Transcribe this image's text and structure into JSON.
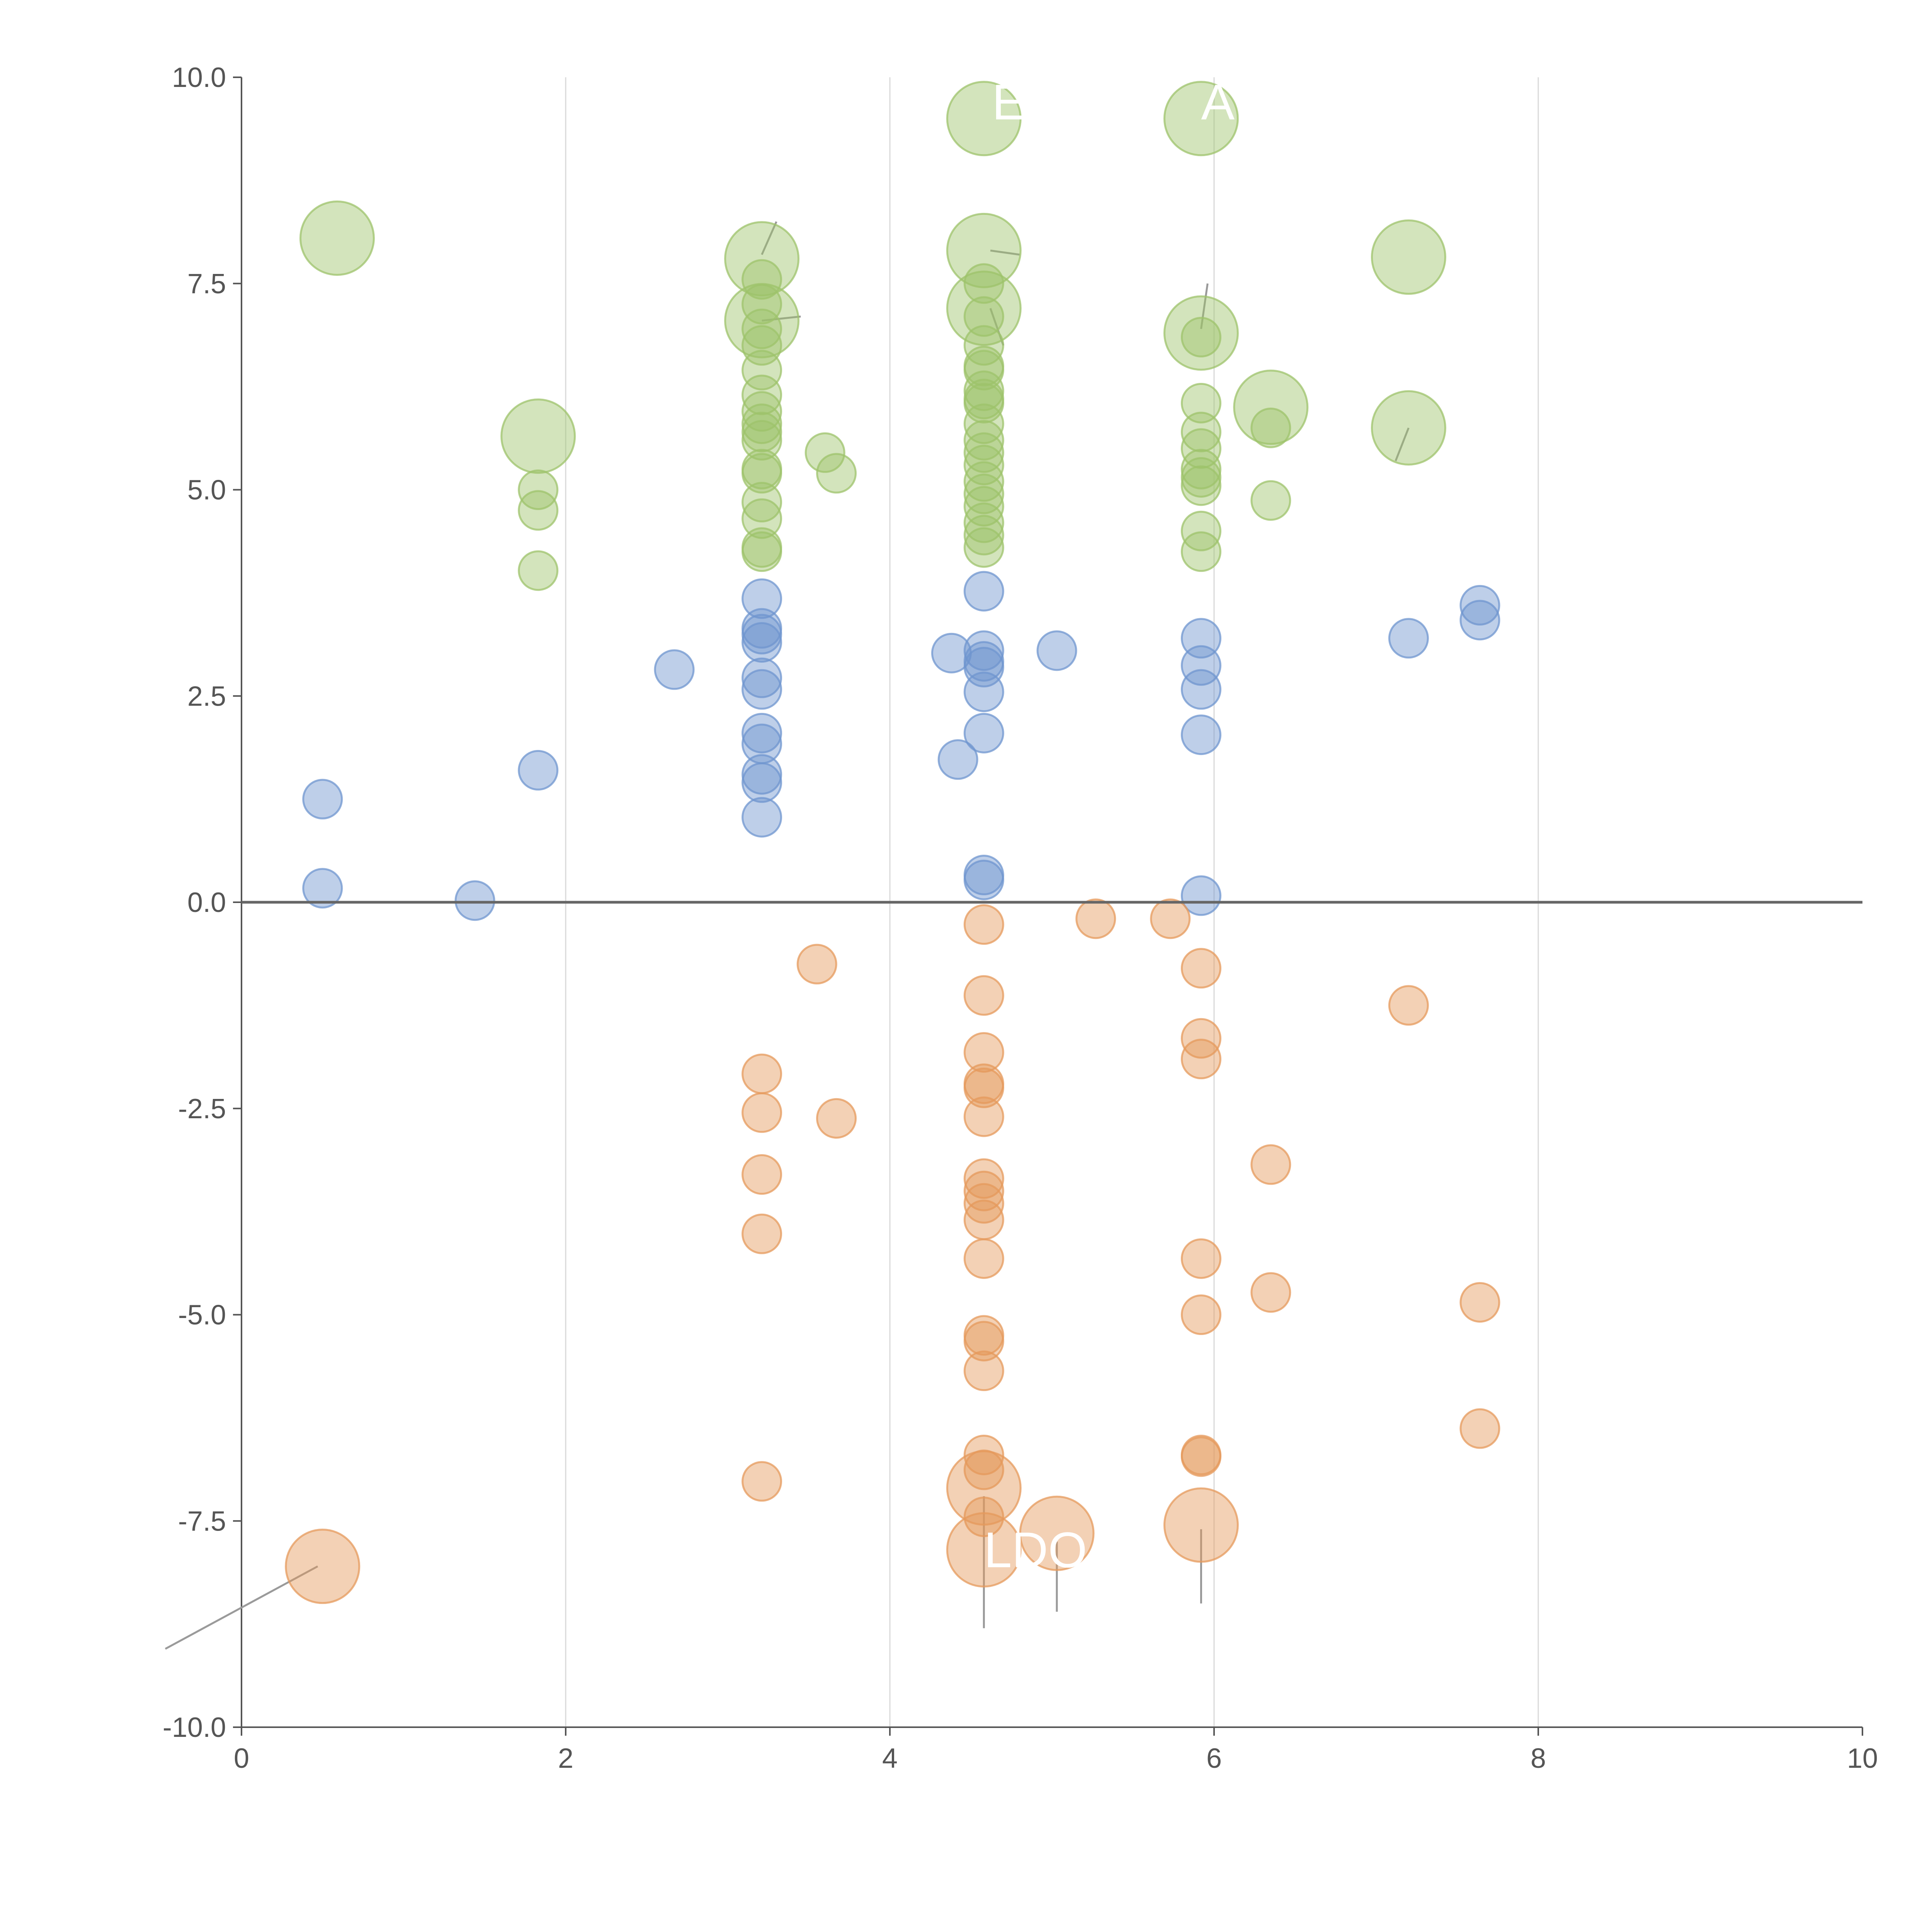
{
  "chart_data": {
    "type": "scatter",
    "title": "",
    "xlabel": "",
    "ylabel": "",
    "xlim": [
      0,
      10
    ],
    "ylim": [
      -10,
      10
    ],
    "x_ticks": [
      "0",
      "2",
      "4",
      "6",
      "8",
      "10"
    ],
    "y_ticks": [
      "-10.0",
      "-7.5",
      "-5.0",
      "-2.5",
      "0.0",
      "2.5",
      "5.0",
      "7.5",
      "10.0"
    ],
    "x_tick_values": [
      0,
      2,
      4,
      6,
      8,
      10
    ],
    "y_tick_values": [
      -10,
      -7.5,
      -5,
      -2.5,
      0,
      2.5,
      5,
      7.5,
      10
    ],
    "grid": "vertical",
    "reference_line_y": 0,
    "colors": {
      "green": "#9dc36b",
      "blue": "#6f95cf",
      "orange": "#e59a5c",
      "axis": "#555555",
      "zero_line": "#666666",
      "grid": "#d9d9d9",
      "leader": "#9a9a9a",
      "label": "#ffffff"
    },
    "series": [
      {
        "name": "positive-high",
        "color": "#9dc36b",
        "points": [
          {
            "x": 0.59,
            "y": 8.05,
            "big": true
          },
          {
            "x": 1.83,
            "y": 5.65,
            "big": true
          },
          {
            "x": 1.83,
            "y": 5.0
          },
          {
            "x": 1.83,
            "y": 4.75
          },
          {
            "x": 1.83,
            "y": 4.02
          },
          {
            "x": 3.21,
            "y": 7.8,
            "big": true
          },
          {
            "x": 3.21,
            "y": 7.05,
            "big": true
          },
          {
            "x": 3.21,
            "y": 7.55
          },
          {
            "x": 3.21,
            "y": 7.25
          },
          {
            "x": 3.21,
            "y": 6.95
          },
          {
            "x": 3.21,
            "y": 6.75
          },
          {
            "x": 3.21,
            "y": 6.45
          },
          {
            "x": 3.21,
            "y": 6.15
          },
          {
            "x": 3.21,
            "y": 5.95
          },
          {
            "x": 3.21,
            "y": 5.8
          },
          {
            "x": 3.21,
            "y": 5.7
          },
          {
            "x": 3.21,
            "y": 5.6
          },
          {
            "x": 3.21,
            "y": 5.25
          },
          {
            "x": 3.21,
            "y": 5.2
          },
          {
            "x": 3.21,
            "y": 4.85
          },
          {
            "x": 3.21,
            "y": 4.65
          },
          {
            "x": 3.21,
            "y": 4.3
          },
          {
            "x": 3.21,
            "y": 4.25
          },
          {
            "x": 3.6,
            "y": 5.45
          },
          {
            "x": 3.67,
            "y": 5.2
          },
          {
            "x": 4.58,
            "y": 9.5,
            "big": true
          },
          {
            "x": 4.58,
            "y": 7.9,
            "big": true
          },
          {
            "x": 4.58,
            "y": 7.2,
            "big": true
          },
          {
            "x": 4.58,
            "y": 7.5
          },
          {
            "x": 4.58,
            "y": 7.1
          },
          {
            "x": 4.58,
            "y": 6.75
          },
          {
            "x": 4.58,
            "y": 6.5
          },
          {
            "x": 4.58,
            "y": 6.45
          },
          {
            "x": 4.58,
            "y": 6.2
          },
          {
            "x": 4.58,
            "y": 6.1
          },
          {
            "x": 4.58,
            "y": 6.05
          },
          {
            "x": 4.58,
            "y": 5.8
          },
          {
            "x": 4.58,
            "y": 5.6
          },
          {
            "x": 4.58,
            "y": 5.45
          },
          {
            "x": 4.58,
            "y": 5.3
          },
          {
            "x": 4.58,
            "y": 5.1
          },
          {
            "x": 4.58,
            "y": 4.95
          },
          {
            "x": 4.58,
            "y": 4.8
          },
          {
            "x": 4.58,
            "y": 4.6
          },
          {
            "x": 4.58,
            "y": 4.45
          },
          {
            "x": 4.58,
            "y": 4.3
          },
          {
            "x": 5.92,
            "y": 9.5,
            "big": true
          },
          {
            "x": 5.92,
            "y": 6.9,
            "big": true
          },
          {
            "x": 5.92,
            "y": 6.85
          },
          {
            "x": 5.92,
            "y": 6.05
          },
          {
            "x": 5.92,
            "y": 5.7
          },
          {
            "x": 5.92,
            "y": 5.5
          },
          {
            "x": 5.92,
            "y": 5.25
          },
          {
            "x": 5.92,
            "y": 5.15
          },
          {
            "x": 5.92,
            "y": 5.05
          },
          {
            "x": 5.92,
            "y": 4.5
          },
          {
            "x": 5.92,
            "y": 4.25
          },
          {
            "x": 6.35,
            "y": 6.0,
            "big": true
          },
          {
            "x": 6.35,
            "y": 5.75
          },
          {
            "x": 6.35,
            "y": 4.87
          },
          {
            "x": 7.2,
            "y": 7.82,
            "big": true
          },
          {
            "x": 7.2,
            "y": 5.75,
            "big": true
          }
        ]
      },
      {
        "name": "positive-low",
        "color": "#6f95cf",
        "points": [
          {
            "x": 0.5,
            "y": 1.25
          },
          {
            "x": 0.5,
            "y": 0.17
          },
          {
            "x": 1.44,
            "y": 0.02
          },
          {
            "x": 1.83,
            "y": 1.6
          },
          {
            "x": 2.67,
            "y": 2.82
          },
          {
            "x": 3.21,
            "y": 3.68
          },
          {
            "x": 3.21,
            "y": 3.32
          },
          {
            "x": 3.21,
            "y": 3.25
          },
          {
            "x": 3.21,
            "y": 3.15
          },
          {
            "x": 3.21,
            "y": 2.72
          },
          {
            "x": 3.21,
            "y": 2.58
          },
          {
            "x": 3.21,
            "y": 2.05
          },
          {
            "x": 3.21,
            "y": 1.92
          },
          {
            "x": 3.21,
            "y": 1.55
          },
          {
            "x": 3.21,
            "y": 1.45
          },
          {
            "x": 3.21,
            "y": 1.03
          },
          {
            "x": 4.38,
            "y": 3.02
          },
          {
            "x": 4.42,
            "y": 1.73
          },
          {
            "x": 4.58,
            "y": 3.77
          },
          {
            "x": 4.58,
            "y": 3.05
          },
          {
            "x": 4.58,
            "y": 2.92
          },
          {
            "x": 4.58,
            "y": 2.85
          },
          {
            "x": 4.58,
            "y": 2.55
          },
          {
            "x": 4.58,
            "y": 2.05
          },
          {
            "x": 4.58,
            "y": 0.33
          },
          {
            "x": 4.58,
            "y": 0.27
          },
          {
            "x": 5.03,
            "y": 3.05
          },
          {
            "x": 5.92,
            "y": 3.2
          },
          {
            "x": 5.92,
            "y": 2.87
          },
          {
            "x": 5.92,
            "y": 2.58
          },
          {
            "x": 5.92,
            "y": 2.03
          },
          {
            "x": 5.92,
            "y": 0.08
          },
          {
            "x": 7.2,
            "y": 3.2
          },
          {
            "x": 7.64,
            "y": 3.6
          },
          {
            "x": 7.64,
            "y": 3.42
          }
        ]
      },
      {
        "name": "negative",
        "color": "#e59a5c",
        "points": [
          {
            "x": 0.5,
            "y": -8.05,
            "big": true
          },
          {
            "x": 3.21,
            "y": -2.08
          },
          {
            "x": 3.21,
            "y": -2.55
          },
          {
            "x": 3.21,
            "y": -3.3
          },
          {
            "x": 3.21,
            "y": -4.02
          },
          {
            "x": 3.21,
            "y": -7.02
          },
          {
            "x": 3.55,
            "y": -0.75
          },
          {
            "x": 3.67,
            "y": -2.62
          },
          {
            "x": 4.58,
            "y": -0.27
          },
          {
            "x": 4.58,
            "y": -1.13
          },
          {
            "x": 4.58,
            "y": -1.82
          },
          {
            "x": 4.58,
            "y": -2.2
          },
          {
            "x": 4.58,
            "y": -2.25
          },
          {
            "x": 4.58,
            "y": -2.6
          },
          {
            "x": 4.58,
            "y": -3.35
          },
          {
            "x": 4.58,
            "y": -3.5
          },
          {
            "x": 4.58,
            "y": -3.65
          },
          {
            "x": 4.58,
            "y": -3.85
          },
          {
            "x": 4.58,
            "y": -4.32
          },
          {
            "x": 4.58,
            "y": -5.25
          },
          {
            "x": 4.58,
            "y": -5.32
          },
          {
            "x": 4.58,
            "y": -5.68
          },
          {
            "x": 4.58,
            "y": -6.7
          },
          {
            "x": 4.58,
            "y": -6.88
          },
          {
            "x": 4.58,
            "y": -7.45
          },
          {
            "x": 4.58,
            "y": -7.1,
            "big": true
          },
          {
            "x": 4.58,
            "y": -7.85,
            "big": true
          },
          {
            "x": 5.03,
            "y": -7.65,
            "big": true
          },
          {
            "x": 5.27,
            "y": -0.2
          },
          {
            "x": 5.73,
            "y": -0.2
          },
          {
            "x": 5.92,
            "y": -0.8
          },
          {
            "x": 5.92,
            "y": -1.65
          },
          {
            "x": 5.92,
            "y": -1.9
          },
          {
            "x": 5.92,
            "y": -4.32
          },
          {
            "x": 5.92,
            "y": -5.0
          },
          {
            "x": 5.92,
            "y": -6.7
          },
          {
            "x": 5.92,
            "y": -6.72
          },
          {
            "x": 5.92,
            "y": -7.55,
            "big": true
          },
          {
            "x": 6.35,
            "y": -3.18
          },
          {
            "x": 6.35,
            "y": -4.73
          },
          {
            "x": 7.2,
            "y": -1.25
          },
          {
            "x": 7.64,
            "y": -4.85
          },
          {
            "x": 7.64,
            "y": -6.38
          }
        ]
      }
    ],
    "annotations": [
      {
        "text": "E",
        "x": 4.63,
        "y": 9.7
      },
      {
        "text": "AN",
        "x": 5.92,
        "y": 9.7
      },
      {
        "text": "LDO",
        "x": 4.58,
        "y": -7.85
      }
    ],
    "leader_lines": [
      {
        "x1": 0.47,
        "y1": -8.05,
        "x2": -0.47,
        "y2": -9.05
      },
      {
        "x1": 4.58,
        "y1": -7.2,
        "x2": 4.58,
        "y2": -8.8
      },
      {
        "x1": 5.03,
        "y1": -7.75,
        "x2": 5.03,
        "y2": -8.6
      },
      {
        "x1": 5.92,
        "y1": -7.6,
        "x2": 5.92,
        "y2": -8.5
      },
      {
        "x1": 3.21,
        "y1": 7.85,
        "x2": 3.3,
        "y2": 8.25
      },
      {
        "x1": 3.21,
        "y1": 7.05,
        "x2": 3.45,
        "y2": 7.1
      },
      {
        "x1": 4.62,
        "y1": 7.9,
        "x2": 4.8,
        "y2": 7.85
      },
      {
        "x1": 4.62,
        "y1": 7.2,
        "x2": 4.7,
        "y2": 6.75
      },
      {
        "x1": 5.92,
        "y1": 6.95,
        "x2": 5.96,
        "y2": 7.5
      },
      {
        "x1": 7.2,
        "y1": 5.75,
        "x2": 7.12,
        "y2": 5.35
      }
    ]
  }
}
